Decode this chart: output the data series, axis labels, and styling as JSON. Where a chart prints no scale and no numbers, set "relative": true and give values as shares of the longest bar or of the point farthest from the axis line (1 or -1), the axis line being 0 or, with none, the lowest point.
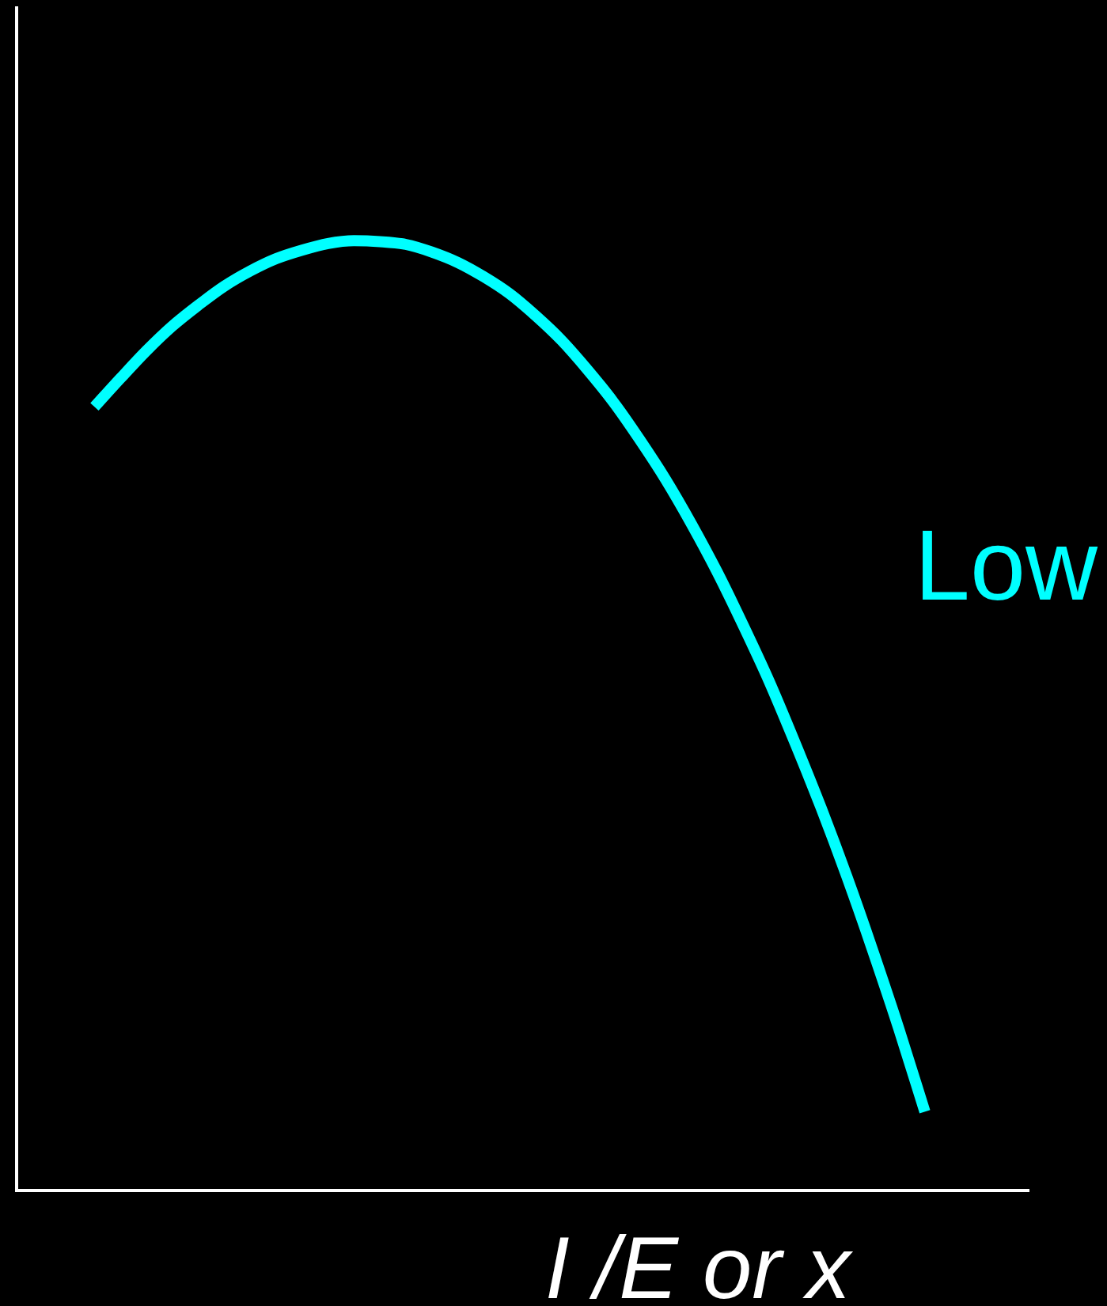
{
  "chart_data": {
    "type": "line",
    "xlabel": "I /E or x",
    "categories": [
      null,
      null,
      null,
      null,
      null,
      null,
      null,
      null,
      null,
      null,
      null,
      null,
      null,
      null,
      null,
      null,
      null,
      null,
      null,
      null,
      null,
      null,
      null,
      null,
      null,
      null,
      null,
      null,
      null,
      null,
      null,
      null,
      null,
      null,
      null,
      null,
      null,
      null,
      null,
      null
    ],
    "series": [
      {
        "name": "Low",
        "color": "#00ffff",
        "values": [
          null,
          null,
          null,
          0.825,
          0.855,
          0.884,
          0.91,
          0.932,
          0.952,
          0.968,
          0.981,
          0.99,
          0.997,
          1,
          0.999,
          0.996,
          0.988,
          0.977,
          0.962,
          0.944,
          0.921,
          0.895,
          0.864,
          0.83,
          0.791,
          0.749,
          0.702,
          0.651,
          0.595,
          0.536,
          0.471,
          0.403,
          0.33,
          0.252,
          0.17,
          0.083,
          null,
          null,
          null,
          null
        ]
      }
    ],
    "relative": true,
    "marker": "none",
    "tick_labels": false
  }
}
